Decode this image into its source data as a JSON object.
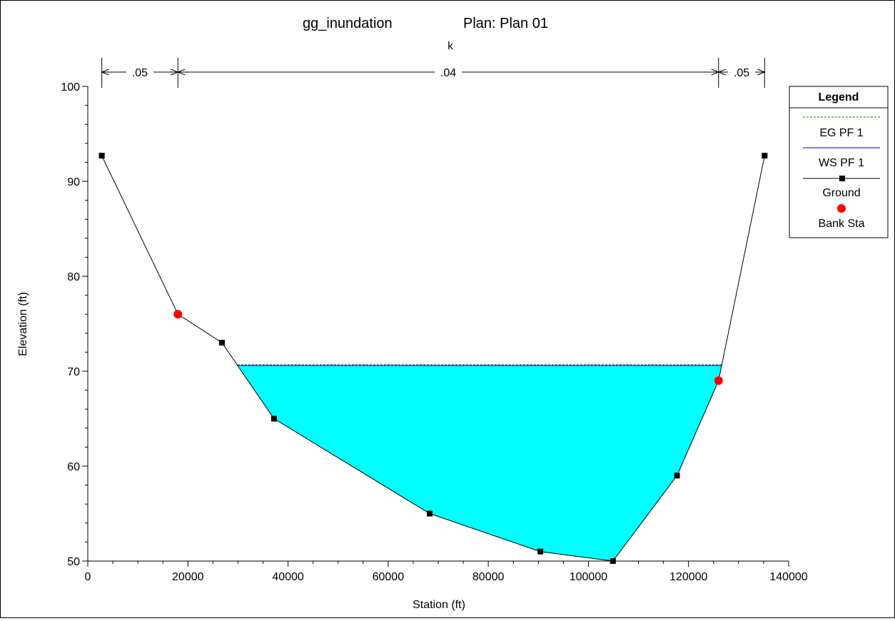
{
  "chart_data": {
    "type": "area",
    "title": {
      "part1": "gg_inundation",
      "part2": "Plan: Plan 01",
      "subtitle": "k"
    },
    "xlabel": "Station (ft)",
    "ylabel": "Elevation (ft)",
    "xlim": [
      0,
      140000
    ],
    "ylim": [
      50,
      100
    ],
    "x_ticks": [
      0,
      20000,
      40000,
      60000,
      80000,
      100000,
      120000,
      140000
    ],
    "y_ticks": [
      50,
      60,
      70,
      80,
      90,
      100
    ],
    "series": [
      {
        "name": "Ground",
        "color": "#000000",
        "marker": "square",
        "points": [
          [
            2800,
            92.7
          ],
          [
            18000,
            76
          ],
          [
            26800,
            73
          ],
          [
            37200,
            65
          ],
          [
            68300,
            55
          ],
          [
            90400,
            51
          ],
          [
            104900,
            50
          ],
          [
            117700,
            59
          ],
          [
            126000,
            69
          ],
          [
            135200,
            92.7
          ]
        ]
      },
      {
        "name": "Bank Sta",
        "color": "#ff0000",
        "marker": "circle",
        "points": [
          [
            18000,
            76
          ],
          [
            126000,
            69
          ]
        ]
      }
    ],
    "water_surface": {
      "name": "WS PF 1",
      "elevation": 70.6,
      "color": "#0000ff",
      "fill": "#00ffff"
    },
    "energy_grade": {
      "name": "EG PF 1",
      "color": "#007f00"
    },
    "mannings_n": [
      {
        "label": ".05",
        "from": 2800,
        "to": 18000
      },
      {
        "label": ".04",
        "from": 18000,
        "to": 126000
      },
      {
        "label": ".05",
        "from": 126000,
        "to": 135200
      }
    ],
    "legend": {
      "title": "Legend",
      "placement": "right",
      "items": [
        "EG PF 1",
        "WS PF 1",
        "Ground",
        "Bank Sta"
      ]
    }
  }
}
